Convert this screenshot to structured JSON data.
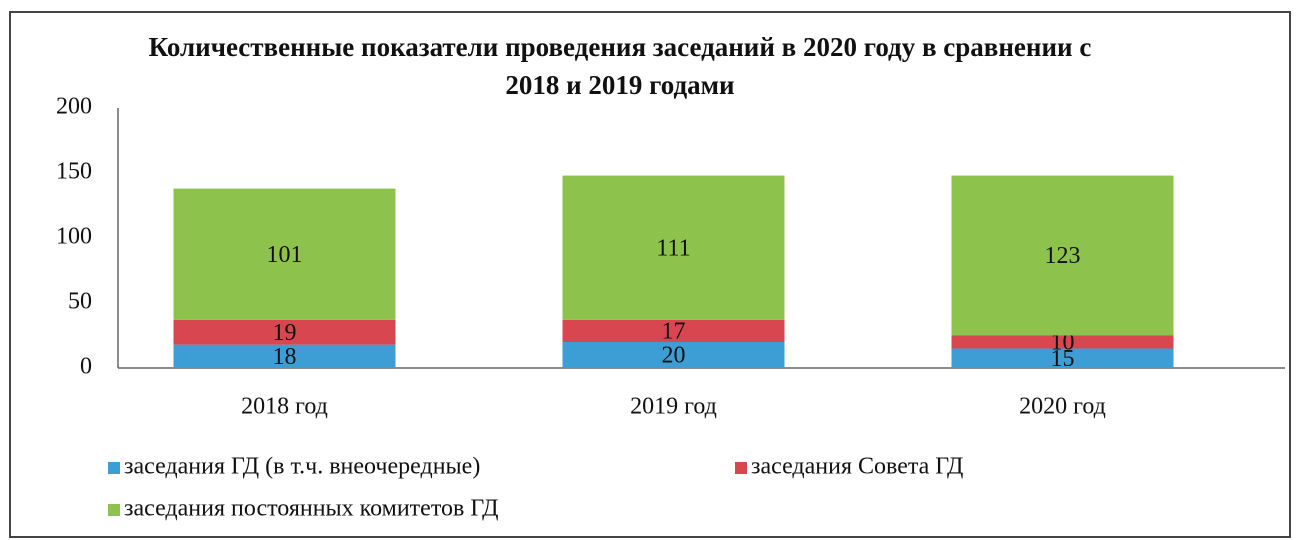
{
  "chart_data": {
    "type": "stacked_bar",
    "title": "Количественные показатели проведения заседаний в 2020 году в сравнении с 2018 и 2019 годами",
    "categories": [
      "2018 год",
      "2019 год",
      "2020 год"
    ],
    "series": [
      {
        "name": "заседания ГД (в т.ч. внеочередные)",
        "color": "#3d9ed6",
        "values": [
          18,
          20,
          15
        ]
      },
      {
        "name": "заседания Совета ГД",
        "color": "#d8464f",
        "values": [
          19,
          17,
          10
        ]
      },
      {
        "name": "заседания постоянных комитетов ГД",
        "color": "#8dc24c",
        "values": [
          101,
          111,
          123
        ]
      }
    ],
    "ylim": [
      0,
      200
    ],
    "yticks": [
      0,
      50,
      100,
      150,
      200
    ],
    "grid": false
  }
}
